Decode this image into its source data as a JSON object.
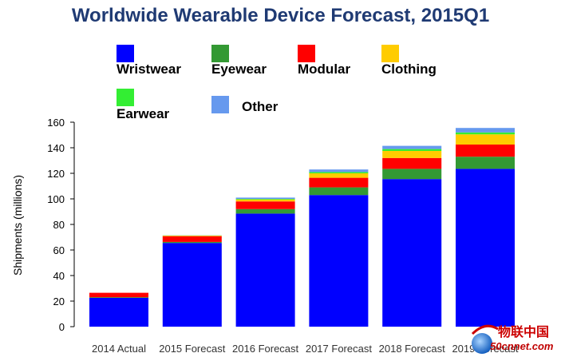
{
  "chart_data": {
    "type": "bar",
    "stacked": true,
    "title": "Worldwide Wearable Device Forecast, 2015Q1",
    "xlabel": "",
    "ylabel": "Shipments (millions)",
    "ylim": [
      0,
      160
    ],
    "yticks": [
      0,
      20,
      40,
      60,
      80,
      100,
      120,
      140,
      160
    ],
    "grid": false,
    "legend_position": "top",
    "categories": [
      "2014 Actual",
      "2015 Forecast",
      "2016 Forecast",
      "2017 Forecast",
      "2018 Forecast",
      "2019 Forecast"
    ],
    "series": [
      {
        "name": "Wristwear",
        "color": "#0000ff",
        "values": [
          22.5,
          65.5,
          88.5,
          103,
          115.5,
          123.5
        ]
      },
      {
        "name": "Eyewear",
        "color": "#339933",
        "values": [
          0.5,
          0.8,
          3.5,
          6,
          8,
          9.5
        ]
      },
      {
        "name": "Modular",
        "color": "#ff0000",
        "values": [
          3.5,
          4.5,
          6,
          7.5,
          8.5,
          9.5
        ]
      },
      {
        "name": "Clothing",
        "color": "#ffcc00",
        "values": [
          0,
          0.5,
          1.5,
          3.5,
          5.5,
          8
        ]
      },
      {
        "name": "Earwear",
        "color": "#33ee33",
        "values": [
          0,
          0.1,
          0.5,
          1,
          1.5,
          1.5
        ]
      },
      {
        "name": "Other",
        "color": "#6699ee",
        "values": [
          0,
          0.1,
          1,
          2,
          2.5,
          3.5
        ]
      }
    ]
  },
  "watermark": {
    "text_cn": "物联中国",
    "text_url": "50cnnet.com"
  }
}
